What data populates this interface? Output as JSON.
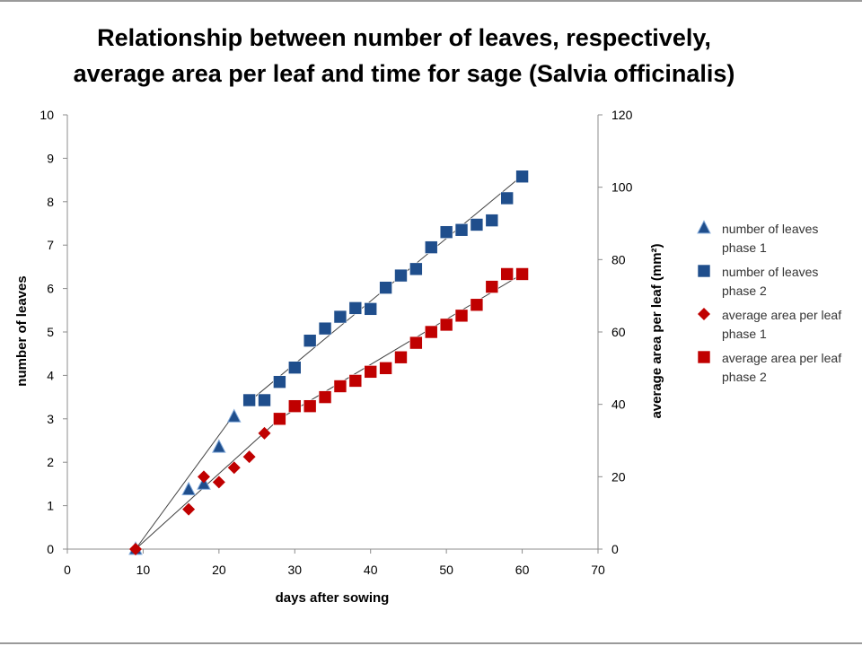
{
  "chart_data": {
    "type": "scatter",
    "title_line1": "Relationship between number of leaves, respectively,",
    "title_line2": "average area per leaf and time for sage (Salvia officinalis)",
    "xlabel": "days after sowing",
    "ylabel_left": "number of  leaves",
    "ylabel_right": "average area per leaf (mm²)",
    "xlim": [
      0,
      70
    ],
    "xticks": [
      0,
      10,
      20,
      30,
      40,
      50,
      60,
      70
    ],
    "ylim_left": [
      0,
      10
    ],
    "yticks_left": [
      0,
      1,
      2,
      3,
      4,
      5,
      6,
      7,
      8,
      9,
      10
    ],
    "ylim_right": [
      0,
      120
    ],
    "yticks_right": [
      0,
      20,
      40,
      60,
      80,
      100,
      120
    ],
    "grid": false,
    "legend_position": "right",
    "series": [
      {
        "name_line1": "number of leaves",
        "name_line2": "phase 1",
        "axis": "left",
        "marker": "triangle",
        "color": "#1F4E8C",
        "points": [
          [
            9,
            0
          ],
          [
            16,
            1.37
          ],
          [
            18,
            1.5
          ],
          [
            20,
            2.35
          ],
          [
            22,
            3.05
          ]
        ]
      },
      {
        "name_line1": "number of leaves",
        "name_line2": "phase 2",
        "axis": "left",
        "marker": "square",
        "color": "#1F4E8C",
        "points": [
          [
            24,
            3.43
          ],
          [
            26,
            3.43
          ],
          [
            28,
            3.85
          ],
          [
            30,
            4.18
          ],
          [
            32,
            4.8
          ],
          [
            34,
            5.08
          ],
          [
            36,
            5.35
          ],
          [
            38,
            5.55
          ],
          [
            40,
            5.53
          ],
          [
            42,
            6.02
          ],
          [
            44,
            6.3
          ],
          [
            46,
            6.45
          ],
          [
            48,
            6.95
          ],
          [
            50,
            7.3
          ],
          [
            52,
            7.35
          ],
          [
            54,
            7.47
          ],
          [
            56,
            7.57
          ],
          [
            58,
            8.08
          ],
          [
            60,
            8.58
          ]
        ]
      },
      {
        "name_line1": "average area per leaf",
        "name_line2": "phase 1",
        "axis": "right",
        "marker": "diamond",
        "color": "#C00000",
        "points": [
          [
            9,
            0
          ],
          [
            16,
            11
          ],
          [
            18,
            20
          ],
          [
            20,
            18.5
          ],
          [
            22,
            22.5
          ],
          [
            24,
            25.5
          ],
          [
            26,
            32
          ]
        ]
      },
      {
        "name_line1": "average area per leaf",
        "name_line2": "phase 2",
        "axis": "right",
        "marker": "square",
        "color": "#C00000",
        "points": [
          [
            28,
            36
          ],
          [
            30,
            39.5
          ],
          [
            32,
            39.5
          ],
          [
            34,
            42
          ],
          [
            36,
            45
          ],
          [
            38,
            46.5
          ],
          [
            40,
            49
          ],
          [
            42,
            50
          ],
          [
            44,
            53
          ],
          [
            46,
            57
          ],
          [
            48,
            60
          ],
          [
            50,
            62
          ],
          [
            52,
            64.5
          ],
          [
            54,
            67.5
          ],
          [
            56,
            72.5
          ],
          [
            58,
            76
          ],
          [
            60,
            76
          ]
        ]
      }
    ],
    "trendlines": [
      {
        "axis": "left",
        "color": "#404040",
        "from": [
          9,
          0
        ],
        "to": [
          22,
          3.1
        ]
      },
      {
        "axis": "left",
        "color": "#404040",
        "from": [
          24,
          3.4
        ],
        "to": [
          60,
          8.6
        ]
      },
      {
        "axis": "right",
        "color": "#404040",
        "from": [
          9,
          0
        ],
        "to": [
          28,
          36
        ]
      },
      {
        "axis": "right",
        "color": "#404040",
        "from": [
          28,
          36
        ],
        "to": [
          60,
          76
        ]
      }
    ]
  }
}
